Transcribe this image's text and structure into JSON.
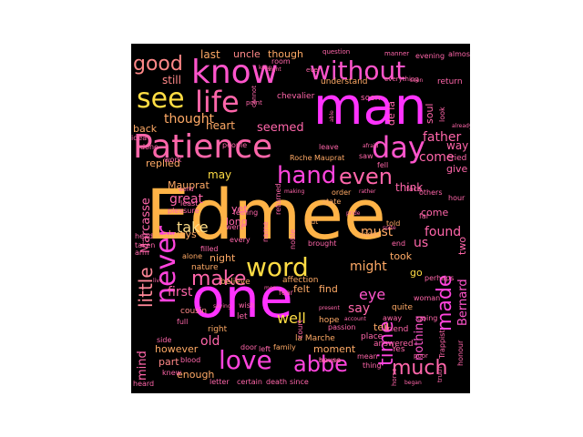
{
  "words": [
    {
      "text": "Edmee",
      "color": "#ffb347",
      "size": "big"
    },
    {
      "text": "one",
      "color": "#ff33ff"
    },
    {
      "text": "man",
      "color": "#ff33ff"
    },
    {
      "text": "know",
      "color": "#ff55cc"
    },
    {
      "text": "Patience",
      "color": "#ff66aa"
    },
    {
      "text": "day",
      "color": "#ff55cc"
    },
    {
      "text": "without",
      "color": "#ff55cc"
    },
    {
      "text": "see",
      "color": "#ffdd44"
    },
    {
      "text": "life",
      "color": "#ff66aa"
    },
    {
      "text": "good",
      "color": "#ff8888"
    },
    {
      "text": "word",
      "color": "#ffdd44"
    },
    {
      "text": "love",
      "color": "#ff44dd"
    },
    {
      "text": "hand",
      "color": "#ff44dd"
    },
    {
      "text": "even",
      "color": "#ff66aa"
    },
    {
      "text": "abbe",
      "color": "#ff44dd"
    },
    {
      "text": "much",
      "color": "#ff66aa"
    },
    {
      "text": "never",
      "color": "#ff44dd"
    },
    {
      "text": "little",
      "color": "#ff8899"
    },
    {
      "text": "make",
      "color": "#ff66aa"
    },
    {
      "text": "made",
      "color": "#ff44dd"
    },
    {
      "text": "time",
      "color": "#ff44dd"
    },
    {
      "text": "thought",
      "color": "#ffaa66"
    },
    {
      "text": "seemed",
      "color": "#ff66aa"
    },
    {
      "text": "father",
      "color": "#ff66aa"
    },
    {
      "text": "come",
      "color": "#ff66aa"
    },
    {
      "text": "found",
      "color": "#ff66aa"
    },
    {
      "text": "must",
      "color": "#ffaa66"
    },
    {
      "text": "might",
      "color": "#ffaa66"
    },
    {
      "text": "great",
      "color": "#ff66aa"
    },
    {
      "text": "take",
      "color": "#ffdd88"
    },
    {
      "text": "first",
      "color": "#ff66aa"
    },
    {
      "text": "old",
      "color": "#ff66aa"
    },
    {
      "text": "well",
      "color": "#ffdd44"
    },
    {
      "text": "eye",
      "color": "#ff55cc"
    },
    {
      "text": "us",
      "color": "#ff66aa"
    },
    {
      "text": "say",
      "color": "#ff66aa"
    },
    {
      "text": "mind",
      "color": "#ff66aa"
    },
    {
      "text": "Bernard",
      "color": "#ff55cc"
    },
    {
      "text": "nothing",
      "color": "#ff55cc"
    },
    {
      "text": "enough",
      "color": "#ffaa66"
    },
    {
      "text": "still",
      "color": "#ff8888"
    },
    {
      "text": "last",
      "color": "#ffaa66"
    },
    {
      "text": "uncle",
      "color": "#ff8888"
    },
    {
      "text": "though",
      "color": "#ffaa66"
    },
    {
      "text": "heart",
      "color": "#ffaa66"
    },
    {
      "text": "back",
      "color": "#ffaa66"
    },
    {
      "text": "way",
      "color": "#ff66aa"
    },
    {
      "text": "give",
      "color": "#ff66aa"
    },
    {
      "text": "think",
      "color": "#ff66aa"
    },
    {
      "text": "may",
      "color": "#ffdd44"
    },
    {
      "text": "replied",
      "color": "#ffaa66"
    },
    {
      "text": "Mauprat",
      "color": "#ffaa66"
    },
    {
      "text": "always",
      "color": "#ffaa66"
    },
    {
      "text": "long",
      "color": "#ff66aa"
    },
    {
      "text": "night",
      "color": "#ffaa66"
    },
    {
      "text": "took",
      "color": "#ffaa66"
    },
    {
      "text": "go",
      "color": "#ffdd44"
    },
    {
      "text": "felt",
      "color": "#ffaa66"
    },
    {
      "text": "find",
      "color": "#ffaa66"
    },
    {
      "text": "tell",
      "color": "#ffaa66"
    },
    {
      "text": "moment",
      "color": "#ffaa66"
    },
    {
      "text": "however",
      "color": "#ffaa66"
    },
    {
      "text": "part",
      "color": "#ff8888"
    },
    {
      "text": "Marcasse",
      "color": "#ff66aa"
    },
    {
      "text": "soul",
      "color": "#ff66aa"
    },
    {
      "text": "de la",
      "color": "#ff66aa"
    },
    {
      "text": "two",
      "color": "#ff66aa"
    },
    {
      "text": "yet",
      "color": "#ff66aa"
    },
    {
      "text": "come",
      "color": "#ff66aa"
    },
    {
      "text": "cousin",
      "color": "#ff8888"
    },
    {
      "text": "affection",
      "color": "#ffaa66"
    },
    {
      "text": "believe",
      "color": "#ffaa66"
    },
    {
      "text": "Roche Mauprat",
      "color": "#ffaa66"
    },
    {
      "text": "chevalier",
      "color": "#ff66aa"
    },
    {
      "text": "understand",
      "color": "#ffaa66"
    },
    {
      "text": "return",
      "color": "#ff66aa"
    },
    {
      "text": "cried",
      "color": "#ff66aa"
    },
    {
      "text": "alone",
      "color": "#ffaa66"
    },
    {
      "text": "nature",
      "color": "#ffaa66"
    },
    {
      "text": "hope",
      "color": "#ffaa66"
    },
    {
      "text": "family",
      "color": "#ffaa66"
    },
    {
      "text": "la Marche",
      "color": "#ffaa66"
    },
    {
      "text": "answered",
      "color": "#ff66aa"
    },
    {
      "text": "quite",
      "color": "#ffaa66"
    },
    {
      "text": "place",
      "color": "#ff66aa"
    },
    {
      "text": "friend",
      "color": "#ff66aa"
    },
    {
      "text": "Yes",
      "color": "#ff66aa"
    },
    {
      "text": "letter",
      "color": "#ff66aa"
    },
    {
      "text": "certain",
      "color": "#ff66aa"
    },
    {
      "text": "death",
      "color": "#ff66aa"
    },
    {
      "text": "since",
      "color": "#ff66aa"
    },
    {
      "text": "heard",
      "color": "#ff66aa"
    },
    {
      "text": "knew",
      "color": "#ff66aa"
    },
    {
      "text": "blood",
      "color": "#ff66aa"
    },
    {
      "text": "door",
      "color": "#ff66aa"
    },
    {
      "text": "left",
      "color": "#ff66aa"
    },
    {
      "text": "house",
      "color": "#ff66aa"
    },
    {
      "text": "mean",
      "color": "#ff66aa"
    },
    {
      "text": "thing",
      "color": "#ff66aa"
    },
    {
      "text": "honour",
      "color": "#ff66aa"
    },
    {
      "text": "Trappist",
      "color": "#ff66aa"
    },
    {
      "text": "perhaps",
      "color": "#ff66aa"
    },
    {
      "text": "woman",
      "color": "#ff66aa"
    },
    {
      "text": "going",
      "color": "#ff66aa"
    },
    {
      "text": "pleasure",
      "color": "#ff66aa"
    },
    {
      "text": "taken",
      "color": "#ff66aa"
    },
    {
      "text": "head",
      "color": "#ff66aa"
    },
    {
      "text": "arm",
      "color": "#ff66aa"
    },
    {
      "text": "full",
      "color": "#ff66aa"
    },
    {
      "text": "side",
      "color": "#ff66aa"
    },
    {
      "text": "right",
      "color": "#ffaa66"
    },
    {
      "text": "let",
      "color": "#ff66aa"
    },
    {
      "text": "wish",
      "color": "#ff66aa"
    },
    {
      "text": "order",
      "color": "#ffaa66"
    },
    {
      "text": "state",
      "color": "#ffaa66"
    },
    {
      "text": "put",
      "color": "#ffaa66"
    },
    {
      "text": "used",
      "color": "#ffaa66"
    },
    {
      "text": "told",
      "color": "#ffaa66"
    },
    {
      "text": "end",
      "color": "#ff66aa"
    },
    {
      "text": "far",
      "color": "#ff66aa"
    },
    {
      "text": "hour",
      "color": "#ff66aa"
    },
    {
      "text": "others",
      "color": "#ff66aa"
    },
    {
      "text": "face",
      "color": "#ff66aa"
    },
    {
      "text": "fell",
      "color": "#ff66aa"
    },
    {
      "text": "saw",
      "color": "#ff66aa"
    },
    {
      "text": "room",
      "color": "#ff66aa"
    },
    {
      "text": "soon",
      "color": "#ff66aa"
    },
    {
      "text": "done",
      "color": "#ff66aa"
    },
    {
      "text": "work",
      "color": "#ff66aa"
    },
    {
      "text": "idea",
      "color": "#ff66aa"
    },
    {
      "text": "people",
      "color": "#ff66aa"
    },
    {
      "text": "leave",
      "color": "#ff66aa"
    },
    {
      "text": "look",
      "color": "#ff66aa"
    },
    {
      "text": "question",
      "color": "#ff66aa"
    },
    {
      "text": "manner",
      "color": "#ff66aa"
    },
    {
      "text": "evening",
      "color": "#ff66aa"
    },
    {
      "text": "almost",
      "color": "#ff66aa"
    },
    {
      "text": "seen",
      "color": "#ff66aa"
    },
    {
      "text": "everything",
      "color": "#ff66aa"
    },
    {
      "text": "cannot",
      "color": "#ff66aa"
    },
    {
      "text": "point",
      "color": "#ff66aa"
    },
    {
      "text": "ever",
      "color": "#ff66aa"
    },
    {
      "text": "name",
      "color": "#ff66aa"
    },
    {
      "text": "returned",
      "color": "#ff66aa"
    },
    {
      "text": "feeling",
      "color": "#ff66aa"
    },
    {
      "text": "went",
      "color": "#ff66aa"
    },
    {
      "text": "every",
      "color": "#ff66aa"
    },
    {
      "text": "least",
      "color": "#ff66aa"
    },
    {
      "text": "world",
      "color": "#ff66aa"
    },
    {
      "text": "filled",
      "color": "#ff66aa"
    },
    {
      "text": "noble",
      "color": "#ff66aa"
    },
    {
      "text": "brought",
      "color": "#ff66aa"
    },
    {
      "text": "fear",
      "color": "#ff66aa"
    },
    {
      "text": "men",
      "color": "#ff66aa"
    },
    {
      "text": "court",
      "color": "#ff66aa"
    },
    {
      "text": "passion",
      "color": "#ff66aa"
    },
    {
      "text": "away",
      "color": "#ff66aa"
    },
    {
      "text": "truth",
      "color": "#ff66aa"
    },
    {
      "text": "horse",
      "color": "#ff66aa"
    },
    {
      "text": "began",
      "color": "#ff66aa"
    },
    {
      "text": "saying",
      "color": "#ff66aa"
    },
    {
      "text": "poor",
      "color": "#ff66aa"
    },
    {
      "text": "live",
      "color": "#ff66aa"
    },
    {
      "text": "already",
      "color": "#ff66aa"
    },
    {
      "text": "able",
      "color": "#ff66aa"
    },
    {
      "text": "making",
      "color": "#ff66aa"
    },
    {
      "text": "rather",
      "color": "#ff66aa"
    },
    {
      "text": "spite",
      "color": "#ff66aa"
    },
    {
      "text": "pride",
      "color": "#ff66aa"
    },
    {
      "text": "afraid",
      "color": "#ff66aa"
    },
    {
      "text": "keep",
      "color": "#ff66aa"
    },
    {
      "text": "sight",
      "color": "#ff66aa"
    },
    {
      "text": "present",
      "color": "#ff66aa"
    },
    {
      "text": "account",
      "color": "#ff66aa"
    },
    {
      "text": "become",
      "color": "#ff66aa"
    },
    {
      "text": "many",
      "color": "#ff66aa"
    }
  ]
}
